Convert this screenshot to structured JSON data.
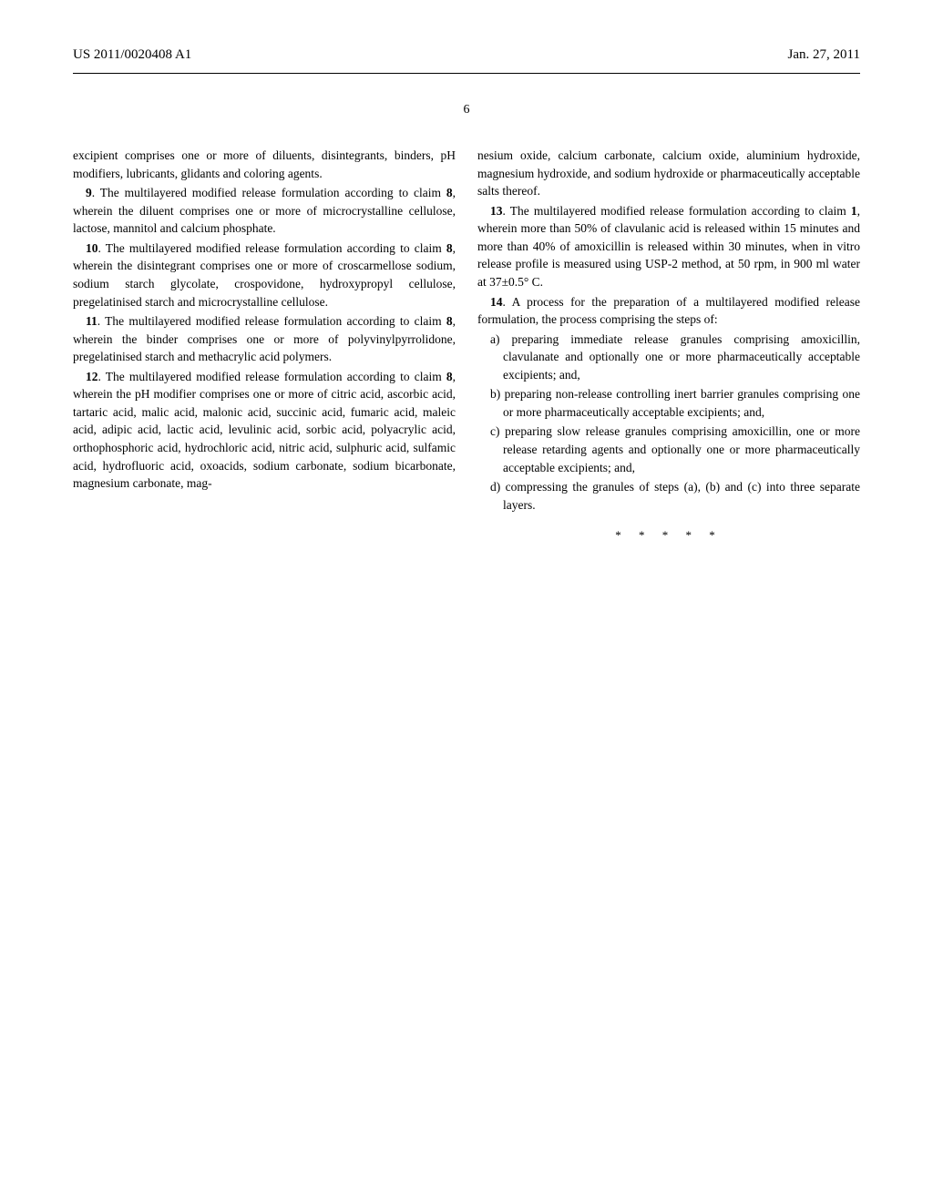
{
  "header": {
    "publication_number": "US 2011/0020408 A1",
    "date": "Jan. 27, 2011"
  },
  "page_number": "6",
  "left_column": {
    "continuation": "excipient comprises one or more of diluents, disintegrants, binders, pH modifiers, lubricants, glidants and coloring agents.",
    "claim9": {
      "num": "9",
      "text": ". The multilayered modified release formulation according to claim ",
      "ref": "8",
      "cont": ", wherein the diluent comprises one or more of microcrystalline cellulose, lactose, mannitol and calcium phosphate."
    },
    "claim10": {
      "num": "10",
      "text": ". The multilayered modified release formulation according to claim ",
      "ref": "8",
      "cont": ", wherein the disintegrant comprises one or more of croscarmellose sodium, sodium starch glycolate, crospovidone, hydroxypropyl cellulose, pregelatinised starch and microcrystalline cellulose."
    },
    "claim11": {
      "num": "11",
      "text": ". The multilayered modified release formulation according to claim ",
      "ref": "8",
      "cont": ", wherein the binder comprises one or more of polyvinylpyrrolidone, pregelatinised starch and methacrylic acid polymers."
    },
    "claim12": {
      "num": "12",
      "text": ". The multilayered modified release formulation according to claim ",
      "ref": "8",
      "cont": ", wherein the pH modifier comprises one or more of citric acid, ascorbic acid, tartaric acid, malic acid, malonic acid, succinic acid, fumaric acid, maleic acid, adipic acid, lactic acid, levulinic acid, sorbic acid, polyacrylic acid, orthophosphoric acid, hydrochloric acid, nitric acid, sulphuric acid, sulfamic acid, hydrofluoric acid, oxoacids, sodium carbonate, sodium bicarbonate, magnesium carbonate, mag-"
    }
  },
  "right_column": {
    "continuation": "nesium oxide, calcium carbonate, calcium oxide, aluminium hydroxide, magnesium hydroxide, and sodium hydroxide or pharmaceutically acceptable salts thereof.",
    "claim13": {
      "num": "13",
      "text": ". The multilayered modified release formulation according to claim ",
      "ref": "1",
      "cont": ", wherein more than 50% of clavulanic acid is released within 15 minutes and more than 40% of amoxicillin is released within 30 minutes, when in vitro release profile is measured using USP-2 method, at 50 rpm, in 900 ml water at 37±0.5° C."
    },
    "claim14": {
      "num": "14",
      "text": ". A process for the preparation of a multilayered modified release formulation, the process comprising the steps of:",
      "item_a": "a) preparing immediate release granules comprising amoxicillin, clavulanate and optionally one or more pharmaceutically acceptable excipients; and,",
      "item_b": "b) preparing non-release controlling inert barrier granules comprising one or more pharmaceutically acceptable excipients; and,",
      "item_c": "c) preparing slow release granules comprising amoxicillin, one or more release retarding agents and optionally one or more pharmaceutically acceptable excipients; and,",
      "item_d": "d) compressing the granules of steps (a), (b) and (c) into three separate layers."
    }
  },
  "end_marks": "* * * * *"
}
